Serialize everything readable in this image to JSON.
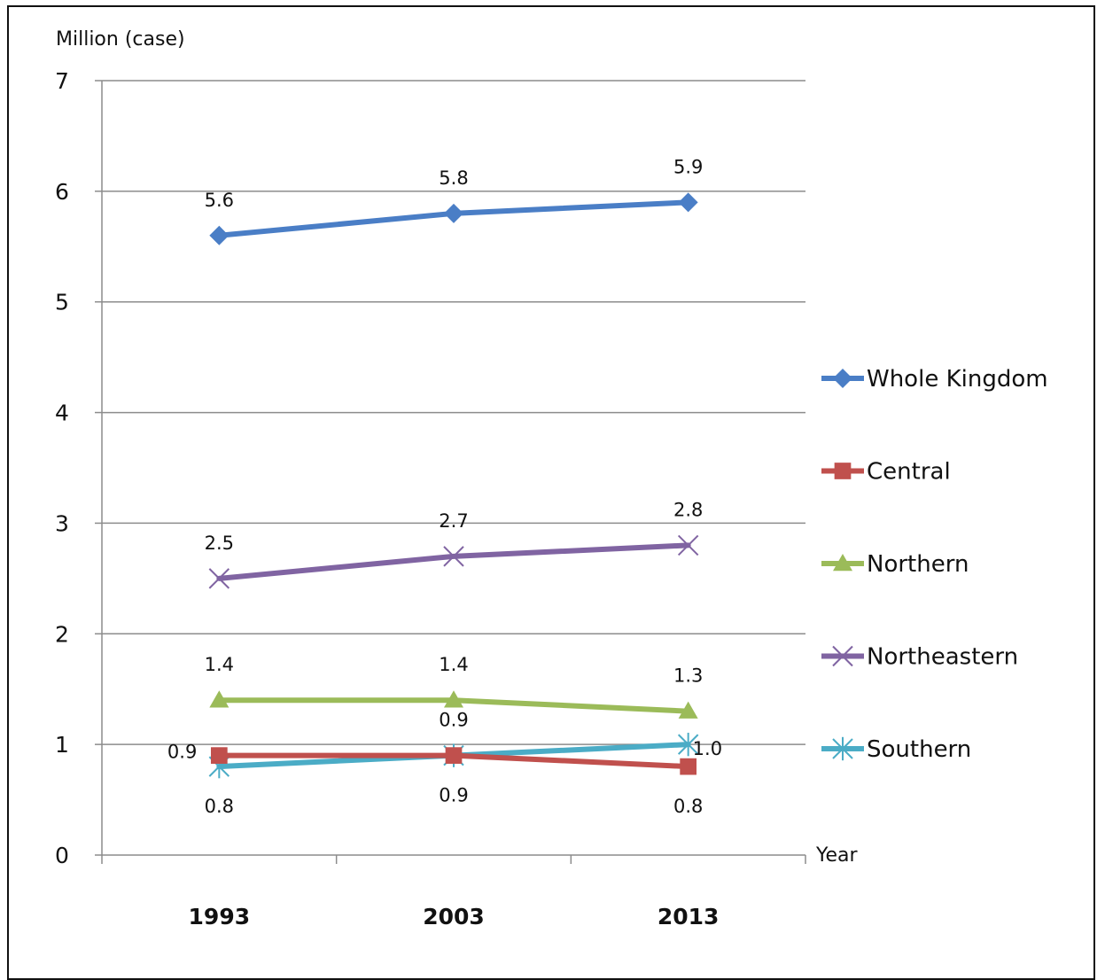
{
  "chart_data": {
    "type": "line",
    "ylabel": "Million (case)",
    "xlabel": "Year",
    "categories": [
      "1993",
      "2003",
      "2013"
    ],
    "ylim": [
      0,
      7
    ],
    "yticks": [
      0,
      1,
      2,
      3,
      4,
      5,
      6,
      7
    ],
    "grid": true,
    "legend_position": "right",
    "series": [
      {
        "name": "Whole Kingdom",
        "values": [
          5.6,
          5.8,
          5.9
        ],
        "labels": [
          "5.6",
          "5.8",
          "5.9"
        ],
        "color": "#4a7ec6",
        "marker": "diamond",
        "label_pos": [
          "above",
          "above",
          "above"
        ]
      },
      {
        "name": "Central",
        "values": [
          0.9,
          0.9,
          0.8
        ],
        "labels": [
          "0.9",
          "0.9",
          "0.8"
        ],
        "color": "#c0504d",
        "marker": "square",
        "label_pos": [
          "left",
          "above",
          "below"
        ]
      },
      {
        "name": "Northern",
        "values": [
          1.4,
          1.4,
          1.3
        ],
        "labels": [
          "1.4",
          "1.4",
          "1.3"
        ],
        "color": "#9bbb59",
        "marker": "triangle",
        "label_pos": [
          "above",
          "above",
          "above"
        ]
      },
      {
        "name": "Northeastern",
        "values": [
          2.5,
          2.7,
          2.8
        ],
        "labels": [
          "2.5",
          "2.7",
          "2.8"
        ],
        "color": "#8064a2",
        "marker": "x",
        "label_pos": [
          "above",
          "above",
          "above"
        ]
      },
      {
        "name": "Southern",
        "values": [
          0.8,
          0.9,
          1.0
        ],
        "labels": [
          "0.8",
          "0.9",
          "1.0"
        ],
        "color": "#4bacc6",
        "marker": "star",
        "label_pos": [
          "below",
          "below",
          "right"
        ]
      }
    ]
  }
}
